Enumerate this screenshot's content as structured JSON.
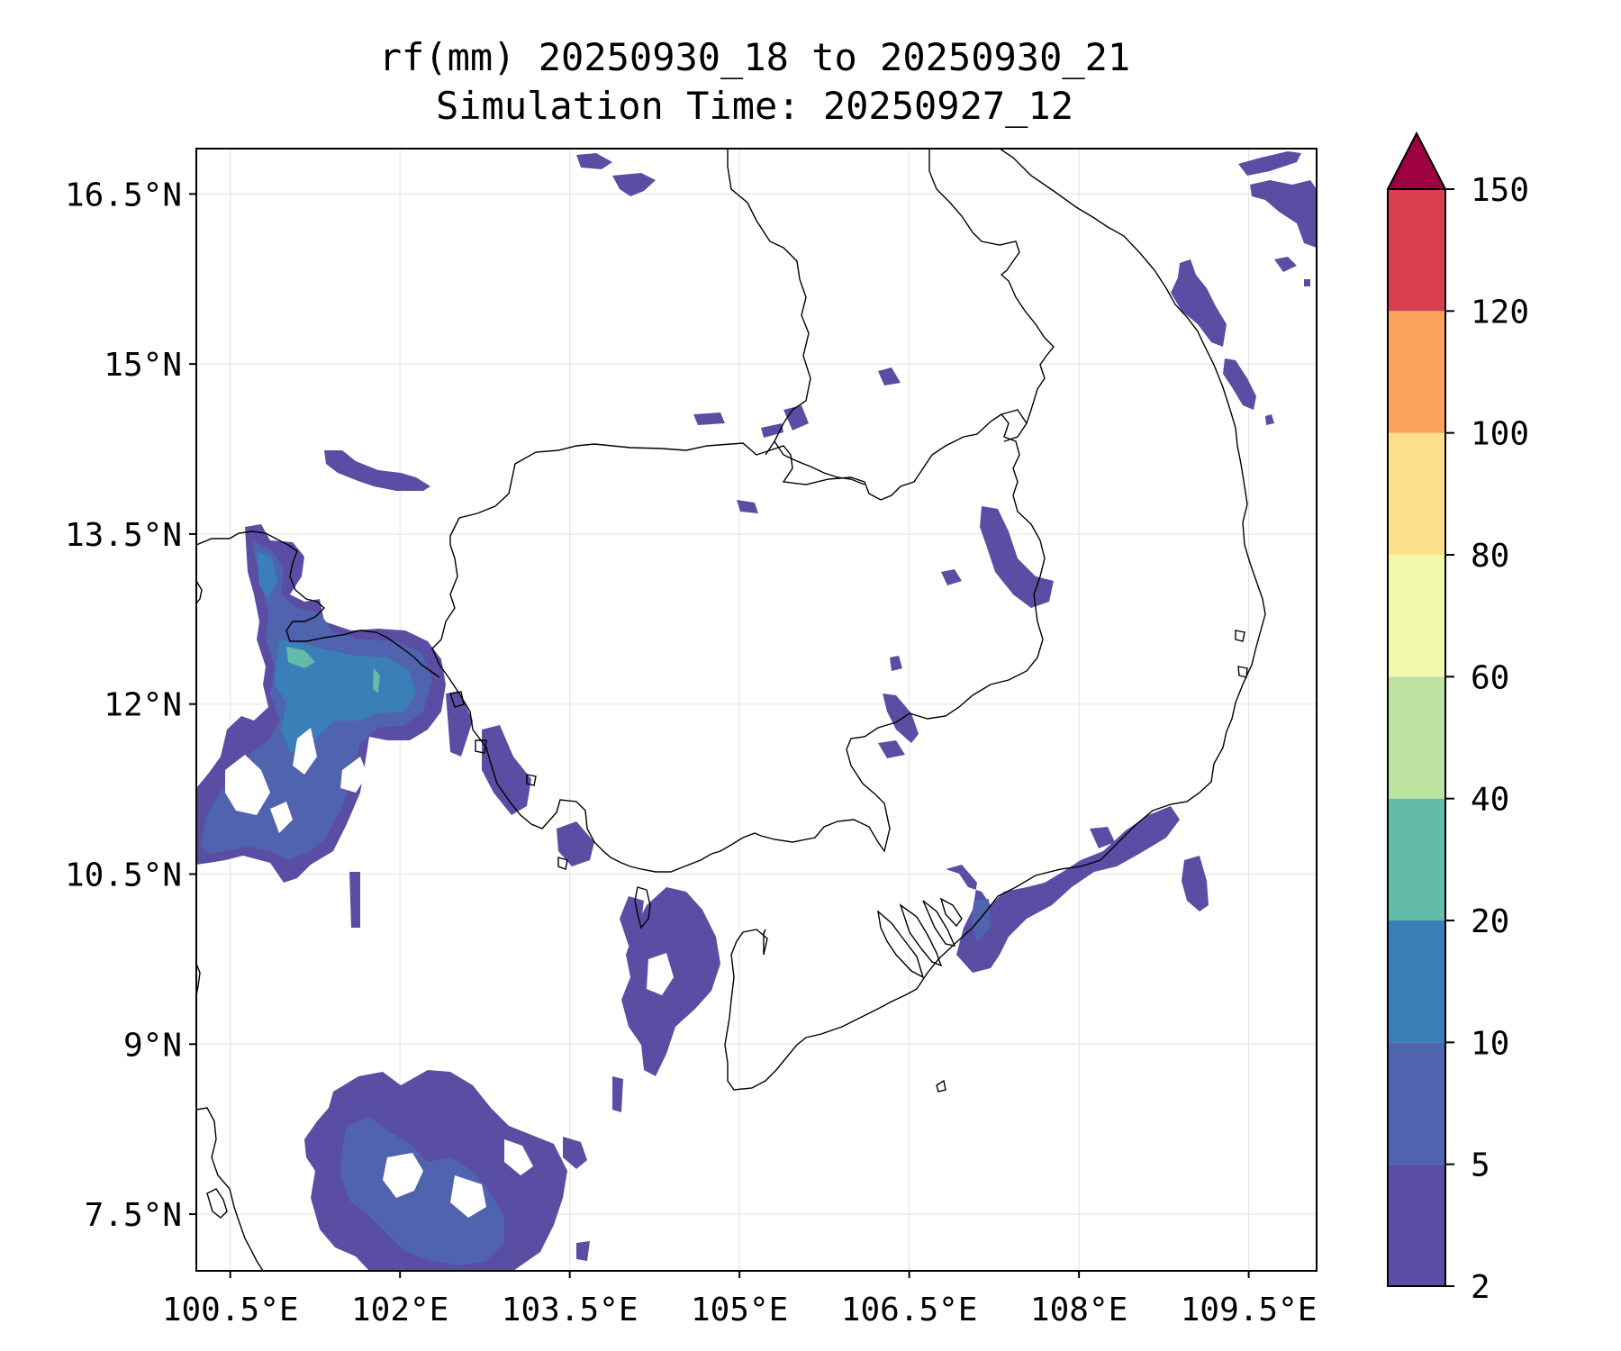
{
  "title": {
    "line1": "rf(mm) 20250930_18 to 20250930_21",
    "line2": "Simulation Time: 20250927_12"
  },
  "map": {
    "lon_range": [
      100.2,
      110.1
    ],
    "lat_range": [
      7.0,
      16.9
    ],
    "lat_ticks": [
      {
        "value": 16.5,
        "label": "16.5°N"
      },
      {
        "value": 15.0,
        "label": "15°N"
      },
      {
        "value": 13.5,
        "label": "13.5°N"
      },
      {
        "value": 12.0,
        "label": "12°N"
      },
      {
        "value": 10.5,
        "label": "10.5°N"
      },
      {
        "value": 9.0,
        "label": "9°N"
      },
      {
        "value": 7.5,
        "label": "7.5°N"
      }
    ],
    "lon_ticks": [
      {
        "value": 100.5,
        "label": "100.5°E"
      },
      {
        "value": 102.0,
        "label": "102°E"
      },
      {
        "value": 103.5,
        "label": "103.5°E"
      },
      {
        "value": 105.0,
        "label": "105°E"
      },
      {
        "value": 106.5,
        "label": "106.5°E"
      },
      {
        "value": 108.0,
        "label": "108°E"
      },
      {
        "value": 109.5,
        "label": "109.5°E"
      }
    ]
  },
  "colorbar": {
    "levels": [
      2,
      5,
      10,
      20,
      40,
      60,
      80,
      100,
      120,
      150
    ],
    "labels": [
      "2",
      "5",
      "10",
      "20",
      "40",
      "60",
      "80",
      "100",
      "120",
      "150"
    ],
    "colors": [
      "#5a4ea4",
      "#4f63ae",
      "#3a7fb8",
      "#63bba9",
      "#bde3a1",
      "#f1f9ad",
      "#fce08b",
      "#fba35e",
      "#d7404c"
    ],
    "extend_color": "#9e0142"
  },
  "colors": {
    "c2": "#5a4ea4",
    "c5": "#4f63ae",
    "c10": "#3a7fb8",
    "c20": "#63bba9"
  }
}
